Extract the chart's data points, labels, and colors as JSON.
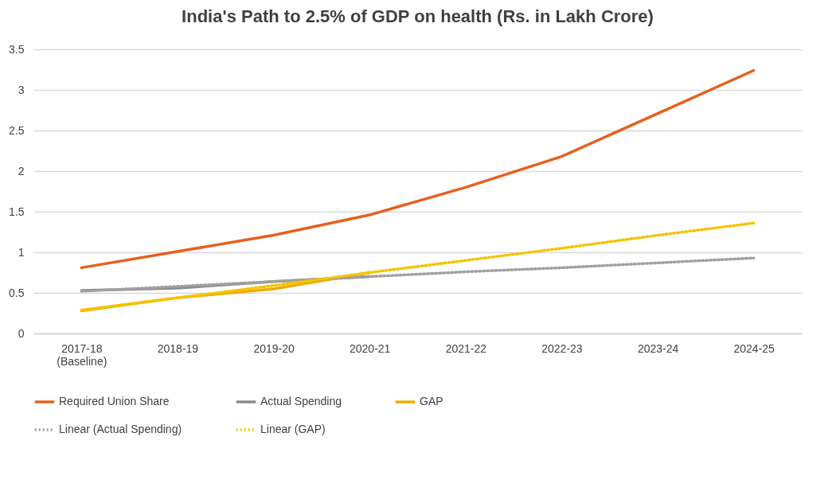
{
  "chart_data": {
    "type": "line",
    "title": "India's Path to 2.5% of GDP on health (Rs. in Lakh Crore)",
    "categories": [
      "2017-18\n(Baseline)",
      "2018-19",
      "2019-20",
      "2020-21",
      "2021-22",
      "2022-23",
      "2023-24",
      "2024-25"
    ],
    "series": [
      {
        "name": "Required Union Share",
        "color": "#e6601e",
        "line_style": "solid",
        "values": [
          0.81,
          1.01,
          1.21,
          1.46,
          1.8,
          2.18,
          2.71,
          3.24
        ]
      },
      {
        "name": "Actual Spending",
        "color": "#8c8c8c",
        "line_style": "solid",
        "values": [
          0.53,
          0.56,
          0.64,
          0.7,
          null,
          null,
          null,
          null
        ]
      },
      {
        "name": "GAP",
        "color": "#f0ab00",
        "line_style": "solid",
        "values": [
          0.28,
          0.44,
          0.55,
          0.75,
          null,
          null,
          null,
          null
        ]
      },
      {
        "name": "Linear (Actual Spending)",
        "color": "#a0a0a0",
        "line_style": "dotted",
        "values": [
          0.52,
          0.58,
          0.64,
          0.7,
          0.76,
          0.81,
          0.87,
          0.93
        ]
      },
      {
        "name": "Linear (GAP)",
        "color": "#f5c400",
        "line_style": "dotted",
        "values": [
          0.29,
          0.44,
          0.59,
          0.75,
          0.9,
          1.05,
          1.21,
          1.36
        ]
      }
    ],
    "ylim": [
      0,
      3.5
    ],
    "yticks": [
      0,
      0.5,
      1,
      1.5,
      2,
      2.5,
      3,
      3.5
    ],
    "grid": "y",
    "legend": "bottom"
  }
}
